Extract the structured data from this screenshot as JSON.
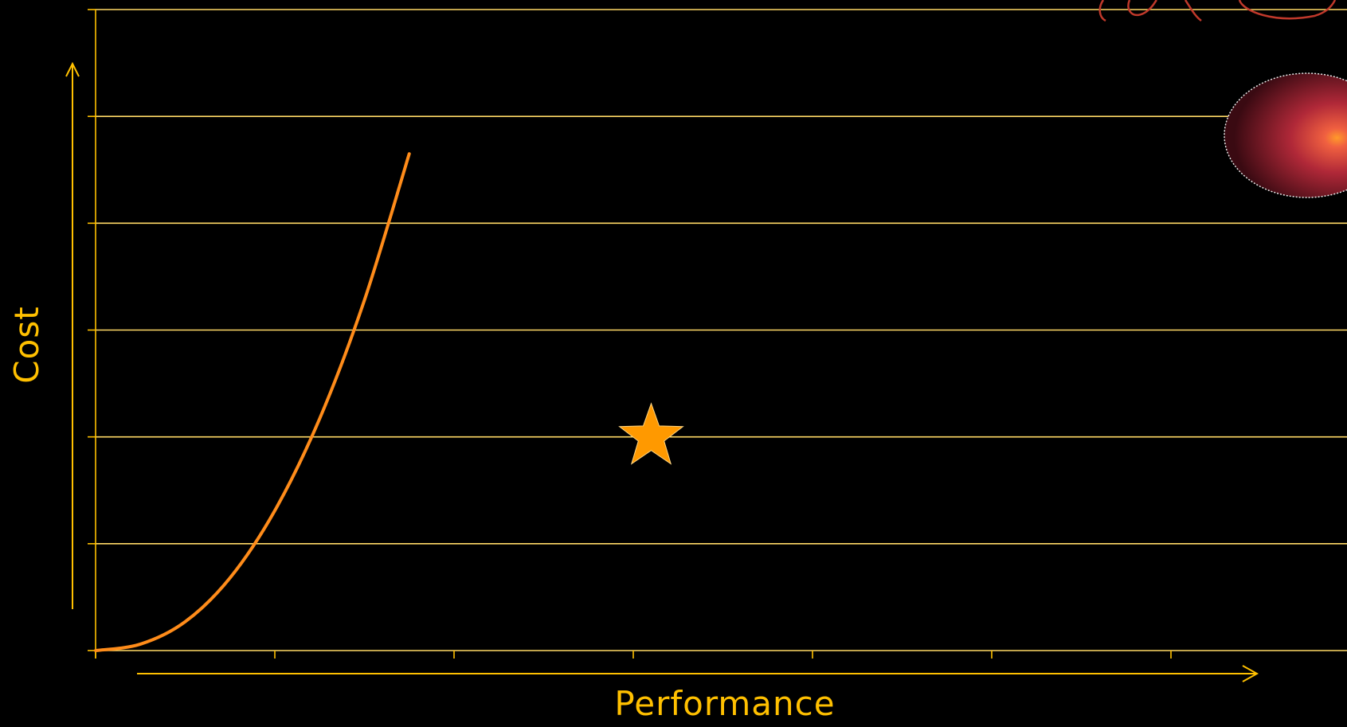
{
  "chart_data": {
    "type": "line",
    "title": "",
    "xlabel": "Performance",
    "ylabel": "Cost",
    "xlim": [
      0,
      7
    ],
    "ylim": [
      0,
      6
    ],
    "grid": true,
    "legend": "none",
    "series": [
      {
        "x": [
          0,
          0.25,
          0.5,
          0.75,
          1.0,
          1.25,
          1.5,
          1.75
        ],
        "y": [
          0,
          0.06,
          0.27,
          0.68,
          1.31,
          2.17,
          3.28,
          4.65
        ]
      }
    ],
    "points": [
      {
        "marker": "star",
        "x": 3.1,
        "y": 2.0
      }
    ],
    "colors": {
      "background": "#000000",
      "axis": "#FFC000",
      "grid": "#FFD966",
      "curve": "#FF8C1A",
      "star": "#FF9900",
      "text": "#FFC000",
      "blob": "#B02838",
      "script": "#C0392B"
    }
  },
  "icons": {
    "star": "star-icon",
    "blob": "red-sphere-icon"
  }
}
